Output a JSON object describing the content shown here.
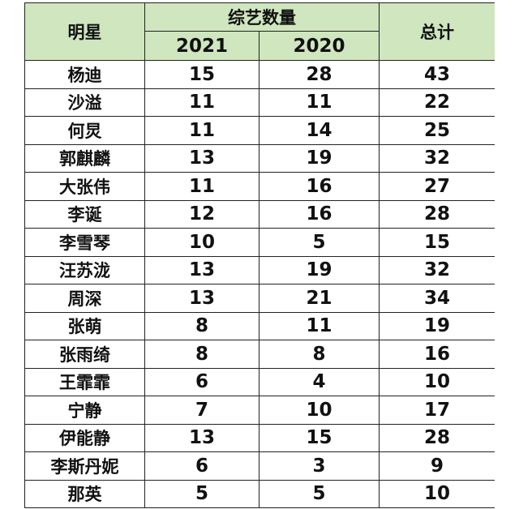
{
  "table": {
    "headers": {
      "name": "明星",
      "group": "综艺数量",
      "year1": "2021",
      "year2": "2020",
      "total": "总计"
    },
    "rows": [
      {
        "name": "杨迪",
        "y2021": "15",
        "y2020": "28",
        "total": "43"
      },
      {
        "name": "沙溢",
        "y2021": "11",
        "y2020": "11",
        "total": "22"
      },
      {
        "name": "何炅",
        "y2021": "11",
        "y2020": "14",
        "total": "25"
      },
      {
        "name": "郭麒麟",
        "y2021": "13",
        "y2020": "19",
        "total": "32"
      },
      {
        "name": "大张伟",
        "y2021": "11",
        "y2020": "16",
        "total": "27"
      },
      {
        "name": "李诞",
        "y2021": "12",
        "y2020": "16",
        "total": "28"
      },
      {
        "name": "李雪琴",
        "y2021": "10",
        "y2020": "5",
        "total": "15"
      },
      {
        "name": "汪苏泷",
        "y2021": "13",
        "y2020": "19",
        "total": "32"
      },
      {
        "name": "周深",
        "y2021": "13",
        "y2020": "21",
        "total": "34"
      },
      {
        "name": "张萌",
        "y2021": "8",
        "y2020": "11",
        "total": "19"
      },
      {
        "name": "张雨绮",
        "y2021": "8",
        "y2020": "8",
        "total": "16"
      },
      {
        "name": "王霏霏",
        "y2021": "6",
        "y2020": "4",
        "total": "10"
      },
      {
        "name": "宁静",
        "y2021": "7",
        "y2020": "10",
        "total": "17"
      },
      {
        "name": "伊能静",
        "y2021": "13",
        "y2020": "15",
        "total": "28"
      },
      {
        "name": "李斯丹妮",
        "y2021": "6",
        "y2020": "3",
        "total": "9"
      },
      {
        "name": "那英",
        "y2021": "5",
        "y2020": "5",
        "total": "10"
      }
    ]
  },
  "colors": {
    "header_bg": "#cfe6be",
    "border": "#222222",
    "text": "#111111"
  }
}
